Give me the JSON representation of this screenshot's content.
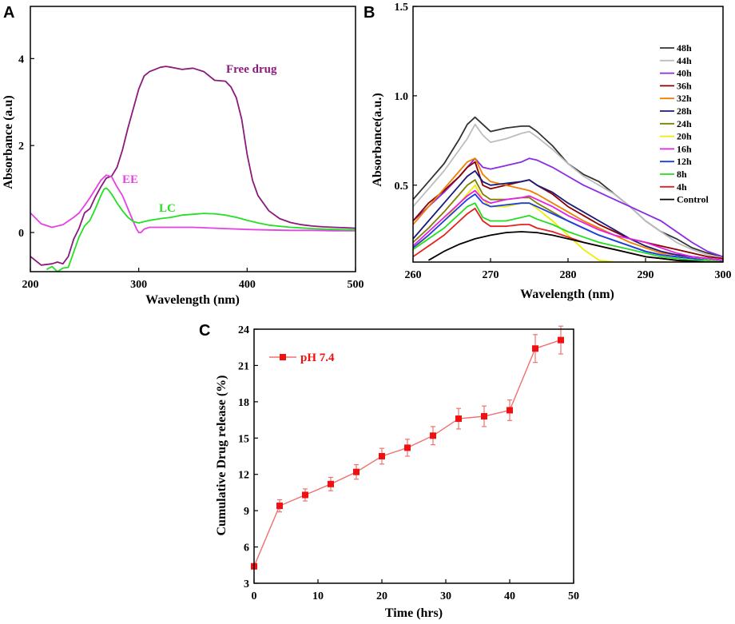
{
  "chart_data": [
    {
      "panel": "A",
      "type": "line",
      "title": "",
      "xlabel": "Wavelength (nm)",
      "ylabel": "Absorbance (a.u)",
      "xlim": [
        200,
        500
      ],
      "ylim": [
        -0.9,
        5.2
      ],
      "xticks": [
        200,
        300,
        400,
        500
      ],
      "yticks": [
        0,
        2,
        4
      ],
      "series": [
        {
          "name": "Free drug",
          "color": "#8b1a7d",
          "x": [
            200,
            210,
            220,
            225,
            230,
            235,
            240,
            245,
            250,
            255,
            260,
            265,
            270,
            275,
            280,
            285,
            290,
            295,
            300,
            305,
            310,
            315,
            320,
            325,
            330,
            340,
            350,
            360,
            370,
            380,
            385,
            390,
            395,
            400,
            405,
            410,
            420,
            430,
            440,
            450,
            460,
            470,
            480,
            490,
            500
          ],
          "y": [
            -0.55,
            -0.75,
            -0.72,
            -0.68,
            -0.72,
            -0.55,
            -0.15,
            0.1,
            0.45,
            0.55,
            0.82,
            1.05,
            1.25,
            1.3,
            1.5,
            1.9,
            2.4,
            2.85,
            3.3,
            3.6,
            3.7,
            3.75,
            3.8,
            3.82,
            3.8,
            3.75,
            3.78,
            3.7,
            3.5,
            3.48,
            3.35,
            3.1,
            2.6,
            1.8,
            1.2,
            0.85,
            0.5,
            0.32,
            0.23,
            0.18,
            0.15,
            0.13,
            0.12,
            0.11,
            0.1
          ]
        },
        {
          "name": "EE",
          "color": "#e640e6",
          "x": [
            200,
            210,
            220,
            230,
            240,
            245,
            250,
            255,
            260,
            265,
            270,
            275,
            280,
            285,
            290,
            295,
            298,
            300,
            302,
            305,
            310,
            320,
            330,
            340,
            350,
            360,
            370,
            380,
            400,
            420,
            440,
            460,
            480,
            500
          ],
          "y": [
            0.45,
            0.2,
            0.12,
            0.18,
            0.35,
            0.45,
            0.62,
            0.8,
            1.0,
            1.2,
            1.32,
            1.28,
            1.05,
            0.85,
            0.55,
            0.25,
            0.08,
            0.0,
            0.0,
            0.08,
            0.12,
            0.12,
            0.12,
            0.12,
            0.12,
            0.11,
            0.1,
            0.09,
            0.07,
            0.06,
            0.05,
            0.05,
            0.04,
            0.04
          ]
        },
        {
          "name": "LC",
          "color": "#22e022",
          "x": [
            215,
            220,
            225,
            230,
            235,
            240,
            245,
            250,
            255,
            260,
            265,
            268,
            270,
            272,
            275,
            280,
            285,
            290,
            295,
            300,
            305,
            310,
            320,
            330,
            340,
            350,
            360,
            370,
            380,
            390,
            400,
            410,
            420,
            440,
            460,
            480,
            500
          ],
          "y": [
            -0.85,
            -0.78,
            -0.9,
            -0.82,
            -0.8,
            -0.45,
            -0.1,
            0.15,
            0.28,
            0.55,
            0.85,
            1.0,
            1.02,
            0.98,
            0.88,
            0.68,
            0.5,
            0.35,
            0.25,
            0.22,
            0.25,
            0.28,
            0.32,
            0.35,
            0.4,
            0.42,
            0.44,
            0.43,
            0.4,
            0.35,
            0.28,
            0.22,
            0.17,
            0.12,
            0.09,
            0.07,
            0.06
          ]
        }
      ],
      "annotations": [
        {
          "text": "Free drug",
          "color": "#8b1a7d"
        },
        {
          "text": "EE",
          "color": "#e640e6"
        },
        {
          "text": "LC",
          "color": "#22e022"
        }
      ]
    },
    {
      "panel": "B",
      "type": "line",
      "title": "",
      "xlabel": "Wavelength (nm)",
      "ylabel": "Absorbance(a.u.)",
      "xlim": [
        260,
        300
      ],
      "ylim": [
        0.07,
        1.5
      ],
      "xticks": [
        260,
        270,
        280,
        290,
        300
      ],
      "yticks": [
        0.5,
        1.0,
        1.5
      ],
      "legend_position": "top-right",
      "legend": [
        "48h",
        "44h",
        "40h",
        "36h",
        "32h",
        "28h",
        "24h",
        "20h",
        "16h",
        "12h",
        "8h",
        "4h",
        "Control"
      ],
      "series": [
        {
          "name": "48h",
          "color": "#333333",
          "x": [
            260,
            262,
            264,
            266,
            267,
            268,
            269,
            270,
            272,
            274,
            275,
            276,
            278,
            280,
            282,
            284,
            286,
            288,
            290,
            292,
            294,
            296,
            298,
            300
          ],
          "y": [
            0.42,
            0.52,
            0.62,
            0.76,
            0.84,
            0.88,
            0.84,
            0.8,
            0.82,
            0.83,
            0.83,
            0.8,
            0.72,
            0.62,
            0.56,
            0.52,
            0.45,
            0.38,
            0.3,
            0.24,
            0.2,
            0.15,
            0.12,
            0.1
          ]
        },
        {
          "name": "44h",
          "color": "#bdbdbd",
          "x": [
            260,
            262,
            264,
            266,
            267,
            268,
            269,
            270,
            272,
            274,
            275,
            276,
            278,
            280,
            282,
            284,
            286,
            288,
            290,
            292,
            294,
            296,
            298,
            300
          ],
          "y": [
            0.38,
            0.48,
            0.58,
            0.7,
            0.76,
            0.84,
            0.78,
            0.74,
            0.76,
            0.79,
            0.8,
            0.77,
            0.7,
            0.62,
            0.55,
            0.5,
            0.45,
            0.38,
            0.3,
            0.24,
            0.18,
            0.14,
            0.11,
            0.09
          ]
        },
        {
          "name": "40h",
          "color": "#8b2be2",
          "x": [
            260,
            262,
            264,
            266,
            267,
            268,
            269,
            270,
            272,
            274,
            275,
            276,
            278,
            280,
            282,
            284,
            286,
            288,
            290,
            292,
            294,
            296,
            298,
            300
          ],
          "y": [
            0.3,
            0.38,
            0.46,
            0.55,
            0.6,
            0.65,
            0.6,
            0.59,
            0.61,
            0.63,
            0.65,
            0.64,
            0.6,
            0.55,
            0.5,
            0.46,
            0.42,
            0.38,
            0.34,
            0.3,
            0.24,
            0.18,
            0.13,
            0.1
          ]
        },
        {
          "name": "36h",
          "color": "#8b0000",
          "x": [
            260,
            262,
            264,
            266,
            267,
            268,
            269,
            270,
            272,
            274,
            275,
            276,
            278,
            280,
            282,
            284,
            286,
            288,
            290,
            292,
            294,
            296,
            298,
            300
          ],
          "y": [
            0.3,
            0.4,
            0.47,
            0.55,
            0.6,
            0.63,
            0.5,
            0.48,
            0.5,
            0.52,
            0.53,
            0.5,
            0.45,
            0.38,
            0.33,
            0.28,
            0.24,
            0.2,
            0.18,
            0.16,
            0.14,
            0.12,
            0.1,
            0.09
          ]
        },
        {
          "name": "32h",
          "color": "#f08000",
          "x": [
            260,
            262,
            264,
            266,
            267,
            268,
            269,
            270,
            272,
            274,
            275,
            276,
            278,
            280,
            282,
            284,
            286,
            288,
            290,
            292,
            294,
            296,
            298,
            300
          ],
          "y": [
            0.28,
            0.38,
            0.48,
            0.58,
            0.63,
            0.65,
            0.56,
            0.52,
            0.5,
            0.48,
            0.47,
            0.45,
            0.4,
            0.35,
            0.3,
            0.26,
            0.22,
            0.18,
            0.15,
            0.12,
            0.11,
            0.1,
            0.09,
            0.08
          ]
        },
        {
          "name": "28h",
          "color": "#1a1a7a",
          "x": [
            260,
            262,
            264,
            266,
            267,
            268,
            269,
            270,
            272,
            274,
            275,
            276,
            278,
            280,
            282,
            284,
            286,
            288,
            290,
            292,
            294,
            296,
            298,
            300
          ],
          "y": [
            0.2,
            0.3,
            0.4,
            0.5,
            0.55,
            0.58,
            0.52,
            0.5,
            0.51,
            0.52,
            0.53,
            0.5,
            0.46,
            0.4,
            0.35,
            0.3,
            0.25,
            0.2,
            0.16,
            0.13,
            0.11,
            0.1,
            0.09,
            0.08
          ]
        },
        {
          "name": "24h",
          "color": "#808000",
          "x": [
            260,
            262,
            264,
            266,
            267,
            268,
            269,
            270,
            272,
            274,
            275,
            276,
            278,
            280,
            282,
            284,
            286,
            288,
            290,
            292,
            294,
            296,
            298,
            300
          ],
          "y": [
            0.18,
            0.26,
            0.35,
            0.45,
            0.5,
            0.53,
            0.45,
            0.42,
            0.42,
            0.43,
            0.43,
            0.4,
            0.35,
            0.3,
            0.26,
            0.22,
            0.19,
            0.16,
            0.13,
            0.11,
            0.1,
            0.09,
            0.08,
            0.07
          ]
        },
        {
          "name": "20h",
          "color": "#eeee00",
          "x": [
            260,
            262,
            264,
            266,
            267,
            268,
            269,
            270,
            272,
            274,
            275,
            276,
            278,
            280,
            282,
            284,
            286,
            288,
            290,
            292,
            294,
            296,
            298,
            300
          ],
          "y": [
            0.14,
            0.22,
            0.3,
            0.4,
            0.45,
            0.5,
            0.42,
            0.38,
            0.38,
            0.4,
            0.4,
            0.37,
            0.3,
            0.22,
            0.14,
            0.08,
            0.07,
            0.07,
            0.07,
            0.07,
            0.07,
            0.07,
            0.07,
            0.07
          ]
        },
        {
          "name": "16h",
          "color": "#e61ee6",
          "x": [
            260,
            262,
            264,
            266,
            267,
            268,
            269,
            270,
            272,
            274,
            275,
            276,
            278,
            280,
            282,
            284,
            286,
            288,
            290,
            292,
            294,
            296,
            298,
            300
          ],
          "y": [
            0.16,
            0.24,
            0.32,
            0.4,
            0.44,
            0.47,
            0.42,
            0.4,
            0.42,
            0.43,
            0.44,
            0.42,
            0.38,
            0.33,
            0.29,
            0.25,
            0.22,
            0.2,
            0.18,
            0.15,
            0.12,
            0.1,
            0.09,
            0.08
          ]
        },
        {
          "name": "12h",
          "color": "#1c3de6",
          "x": [
            260,
            262,
            264,
            266,
            267,
            268,
            269,
            270,
            272,
            274,
            275,
            276,
            278,
            280,
            282,
            284,
            286,
            288,
            290,
            292,
            294,
            296,
            298,
            300
          ],
          "y": [
            0.15,
            0.22,
            0.3,
            0.38,
            0.42,
            0.45,
            0.4,
            0.38,
            0.39,
            0.4,
            0.4,
            0.38,
            0.34,
            0.3,
            0.26,
            0.22,
            0.19,
            0.16,
            0.13,
            0.11,
            0.1,
            0.09,
            0.08,
            0.07
          ]
        },
        {
          "name": "8h",
          "color": "#22dd22",
          "x": [
            260,
            262,
            264,
            266,
            267,
            268,
            269,
            270,
            272,
            274,
            275,
            276,
            278,
            280,
            282,
            284,
            286,
            288,
            290,
            292,
            294,
            296,
            298,
            300
          ],
          "y": [
            0.14,
            0.2,
            0.26,
            0.34,
            0.38,
            0.4,
            0.32,
            0.3,
            0.3,
            0.32,
            0.33,
            0.31,
            0.28,
            0.24,
            0.21,
            0.18,
            0.16,
            0.14,
            0.12,
            0.1,
            0.09,
            0.08,
            0.08,
            0.07
          ]
        },
        {
          "name": "4h",
          "color": "#e62020",
          "x": [
            260,
            262,
            264,
            266,
            267,
            268,
            269,
            270,
            272,
            274,
            275,
            276,
            278,
            280,
            282,
            284,
            286,
            288,
            290,
            292,
            294,
            296,
            298,
            300
          ],
          "y": [
            0.1,
            0.16,
            0.22,
            0.3,
            0.34,
            0.37,
            0.3,
            0.27,
            0.27,
            0.28,
            0.28,
            0.26,
            0.24,
            0.21,
            0.18,
            0.16,
            0.14,
            0.12,
            0.1,
            0.09,
            0.08,
            0.07,
            0.07,
            0.07
          ]
        },
        {
          "name": "Control",
          "color": "#000000",
          "x": [
            262,
            264,
            266,
            268,
            270,
            272,
            274,
            276,
            278,
            280,
            282,
            284,
            286,
            288,
            290,
            292,
            294,
            296,
            298,
            300
          ],
          "y": [
            0.08,
            0.13,
            0.17,
            0.2,
            0.22,
            0.235,
            0.24,
            0.235,
            0.22,
            0.2,
            0.18,
            0.16,
            0.14,
            0.12,
            0.1,
            0.09,
            0.08,
            0.075,
            0.07,
            0.07
          ]
        }
      ]
    },
    {
      "panel": "C",
      "type": "line",
      "title": "",
      "xlabel": "Time (hrs)",
      "ylabel": "Cumulative Drug release (%)",
      "xlim": [
        0,
        50
      ],
      "ylim": [
        3,
        24
      ],
      "xticks": [
        0,
        10,
        20,
        30,
        40,
        50
      ],
      "yticks": [
        3,
        6,
        9,
        12,
        15,
        18,
        21,
        24
      ],
      "legend_position": "top-left",
      "legend": [
        "pH 7.4"
      ],
      "series": [
        {
          "name": "pH 7.4",
          "color": "#ee1111",
          "x": [
            0,
            4,
            8,
            12,
            16,
            20,
            24,
            28,
            32,
            36,
            40,
            44,
            48
          ],
          "y": [
            4.4,
            9.4,
            10.3,
            11.2,
            12.2,
            13.5,
            14.2,
            15.2,
            16.6,
            16.8,
            17.3,
            22.4,
            23.1
          ],
          "error": [
            0,
            0.5,
            0.5,
            0.55,
            0.6,
            0.65,
            0.7,
            0.75,
            0.85,
            0.85,
            0.85,
            1.15,
            1.15
          ]
        }
      ]
    }
  ],
  "panels": {
    "a": {
      "letter": "A"
    },
    "b": {
      "letter": "B"
    },
    "c": {
      "letter": "C"
    }
  }
}
